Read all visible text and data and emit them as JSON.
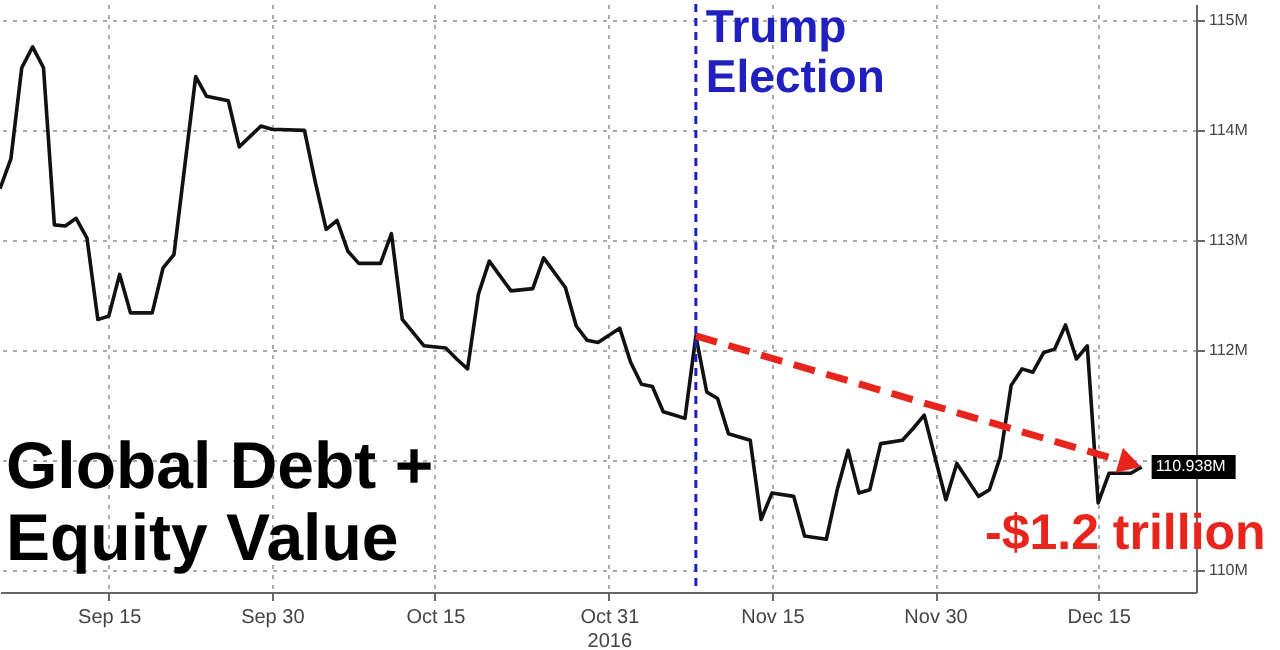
{
  "chart_data": {
    "type": "line",
    "title": "Global Debt + Equity Value",
    "x": [
      "2016-09-05",
      "2016-09-06",
      "2016-09-07",
      "2016-09-08",
      "2016-09-09",
      "2016-09-10",
      "2016-09-11",
      "2016-09-12",
      "2016-09-13",
      "2016-09-14",
      "2016-09-15",
      "2016-09-16",
      "2016-09-17",
      "2016-09-19",
      "2016-09-20",
      "2016-09-21",
      "2016-09-23",
      "2016-09-24",
      "2016-09-26",
      "2016-09-27",
      "2016-09-29",
      "2016-09-30",
      "2016-10-03",
      "2016-10-04",
      "2016-10-05",
      "2016-10-06",
      "2016-10-07",
      "2016-10-08",
      "2016-10-10",
      "2016-10-11",
      "2016-10-12",
      "2016-10-14",
      "2016-10-16",
      "2016-10-17",
      "2016-10-18",
      "2016-10-19",
      "2016-10-20",
      "2016-10-22",
      "2016-10-24",
      "2016-10-25",
      "2016-10-27",
      "2016-10-28",
      "2016-10-29",
      "2016-10-30",
      "2016-11-01",
      "2016-11-02",
      "2016-11-03",
      "2016-11-04",
      "2016-11-05",
      "2016-11-06",
      "2016-11-07",
      "2016-11-08",
      "2016-11-09",
      "2016-11-10",
      "2016-11-11",
      "2016-11-13",
      "2016-11-14",
      "2016-11-15",
      "2016-11-17",
      "2016-11-18",
      "2016-11-20",
      "2016-11-21",
      "2016-11-22",
      "2016-11-23",
      "2016-11-24",
      "2016-11-25",
      "2016-11-27",
      "2016-11-28",
      "2016-11-29",
      "2016-12-01",
      "2016-12-02",
      "2016-12-04",
      "2016-12-05",
      "2016-12-06",
      "2016-12-07",
      "2016-12-08",
      "2016-12-09",
      "2016-12-10",
      "2016-12-11",
      "2016-12-12",
      "2016-12-13",
      "2016-12-14",
      "2016-12-15",
      "2016-12-16",
      "2016-12-17",
      "2016-12-18",
      "2016-12-19"
    ],
    "series": [
      {
        "color": "#111111",
        "values": [
          113.47,
          113.74,
          114.57,
          114.76,
          114.57,
          113.14,
          113.13,
          113.2,
          113.02,
          112.28,
          112.31,
          112.69,
          112.34,
          112.34,
          112.75,
          112.87,
          114.49,
          114.31,
          114.27,
          113.85,
          114.04,
          114.01,
          114.0,
          113.53,
          113.1,
          113.18,
          112.9,
          112.79,
          112.79,
          113.06,
          112.28,
          112.04,
          112.02,
          111.92,
          111.83,
          112.51,
          112.81,
          112.54,
          112.56,
          112.84,
          112.57,
          112.22,
          112.09,
          112.07,
          112.2,
          111.89,
          111.69,
          111.67,
          111.44,
          111.41,
          111.38,
          112.13,
          111.62,
          111.56,
          111.24,
          111.18,
          110.46,
          110.7,
          110.67,
          110.31,
          110.28,
          110.73,
          111.09,
          110.7,
          110.73,
          111.15,
          111.18,
          111.29,
          111.41,
          110.64,
          110.97,
          110.67,
          110.73,
          111.03,
          111.68,
          111.83,
          111.8,
          111.98,
          112.01,
          112.23,
          111.92,
          112.04,
          110.61,
          110.88,
          110.88,
          110.88,
          110.938
        ],
        "value_labels": [
          null,
          null,
          null,
          null,
          null,
          null,
          null,
          null,
          null,
          null,
          null,
          null,
          null,
          null,
          null,
          null,
          null,
          null,
          null,
          null,
          null,
          null,
          null,
          null,
          null,
          null,
          null,
          null,
          null,
          null,
          null,
          null,
          null,
          null,
          null,
          null,
          null,
          null,
          null,
          null,
          null,
          null,
          null,
          null,
          null,
          null,
          null,
          null,
          null,
          null,
          null,
          null,
          null,
          null,
          null,
          null,
          null,
          null,
          null,
          null,
          null,
          null,
          null,
          null,
          null,
          null,
          null,
          null,
          null,
          null,
          null,
          null,
          null,
          null,
          null,
          null,
          null,
          null,
          null,
          null,
          null,
          null,
          null,
          null,
          null,
          null,
          "110.938M"
        ]
      }
    ],
    "xlim": [
      "2016-09-05",
      "2016-12-24"
    ],
    "xticks": [
      {
        "value": "2016-09-15",
        "label": "Sep 15"
      },
      {
        "value": "2016-09-30",
        "label": "Sep 30"
      },
      {
        "value": "2016-10-15",
        "label": "Oct 15"
      },
      {
        "value": "2016-10-31",
        "label": "Oct 31\n2016"
      },
      {
        "value": "2016-11-15",
        "label": "Nov 15"
      },
      {
        "value": "2016-11-30",
        "label": "Nov 30"
      },
      {
        "value": "2016-12-15",
        "label": "Dec 15"
      }
    ],
    "ylim": [
      109.8,
      115.15
    ],
    "yticks": [
      {
        "value": 110,
        "label": "110M"
      },
      {
        "value": 111,
        "label": null
      },
      {
        "value": 112,
        "label": "112M"
      },
      {
        "value": 113,
        "label": "113M"
      },
      {
        "value": 114,
        "label": "114M"
      },
      {
        "value": 115,
        "label": "115M"
      }
    ],
    "grid": true,
    "ref_lines": [
      {
        "axis": "x",
        "value": "2016-11-08",
        "label": "Trump Election",
        "color": "#2020c0",
        "line_style": "dashed"
      }
    ],
    "annotations": [
      {
        "text": "-$1.2 trillion",
        "x": "2016-12-19",
        "y": 110.938
      }
    ]
  }
}
